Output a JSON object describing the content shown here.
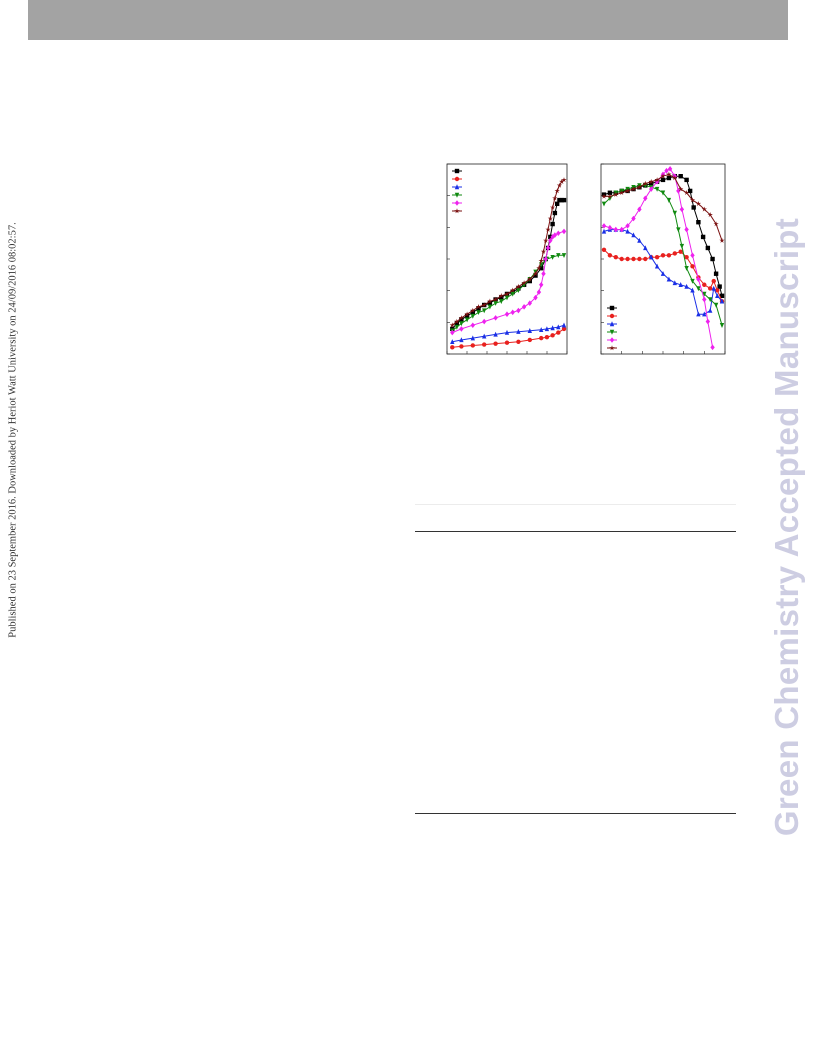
{
  "header": {
    "bar_color": "#a3a3a3"
  },
  "side_note": {
    "text": "Published on 23 September 2016. Downloaded by Heriot Watt University on 24/09/2016 08:02:57."
  },
  "watermark": {
    "text": "Green Chemistry Accepted Manuscript",
    "color": "#cdcde2"
  },
  "chart_data": [
    {
      "type": "line",
      "xlim": [
        0,
        1
      ],
      "ylim": [
        0,
        1
      ],
      "legend": "top-left",
      "series": [
        {
          "color": "#000000",
          "marker": "square",
          "x": [
            0.02,
            0.06,
            0.1,
            0.15,
            0.2,
            0.25,
            0.3,
            0.35,
            0.4,
            0.45,
            0.5,
            0.55,
            0.6,
            0.65,
            0.7,
            0.75,
            0.8,
            0.84,
            0.86,
            0.88,
            0.9,
            0.92,
            0.94,
            0.96,
            0.98,
            1.0
          ],
          "y": [
            0.12,
            0.15,
            0.17,
            0.19,
            0.21,
            0.23,
            0.25,
            0.26,
            0.28,
            0.29,
            0.31,
            0.32,
            0.34,
            0.36,
            0.38,
            0.41,
            0.45,
            0.5,
            0.56,
            0.62,
            0.69,
            0.75,
            0.8,
            0.82,
            0.82,
            0.82
          ]
        },
        {
          "color": "#e8201e",
          "marker": "circle",
          "x": [
            0.02,
            0.1,
            0.2,
            0.3,
            0.4,
            0.5,
            0.6,
            0.7,
            0.8,
            0.85,
            0.9,
            0.95,
            1.0
          ],
          "y": [
            0.02,
            0.025,
            0.03,
            0.035,
            0.04,
            0.045,
            0.05,
            0.06,
            0.07,
            0.075,
            0.085,
            0.1,
            0.12
          ]
        },
        {
          "color": "#1a2fe6",
          "marker": "triangle-up",
          "x": [
            0.02,
            0.1,
            0.2,
            0.3,
            0.4,
            0.5,
            0.6,
            0.7,
            0.8,
            0.85,
            0.9,
            0.95,
            1.0
          ],
          "y": [
            0.05,
            0.06,
            0.07,
            0.08,
            0.09,
            0.1,
            0.105,
            0.11,
            0.115,
            0.12,
            0.125,
            0.13,
            0.14
          ]
        },
        {
          "color": "#108a10",
          "marker": "triangle-down",
          "x": [
            0.02,
            0.06,
            0.1,
            0.15,
            0.2,
            0.25,
            0.3,
            0.35,
            0.4,
            0.45,
            0.5,
            0.55,
            0.6,
            0.65,
            0.7,
            0.75,
            0.8,
            0.85,
            0.9,
            0.95,
            1.0
          ],
          "y": [
            0.11,
            0.13,
            0.15,
            0.17,
            0.19,
            0.21,
            0.22,
            0.24,
            0.26,
            0.27,
            0.29,
            0.31,
            0.33,
            0.36,
            0.39,
            0.43,
            0.47,
            0.5,
            0.51,
            0.52,
            0.52
          ]
        },
        {
          "color": "#ee22ee",
          "marker": "diamond",
          "x": [
            0.02,
            0.1,
            0.2,
            0.3,
            0.4,
            0.5,
            0.55,
            0.6,
            0.65,
            0.7,
            0.75,
            0.78,
            0.8,
            0.82,
            0.84,
            0.86,
            0.88,
            0.9,
            0.92,
            0.95,
            1.0
          ],
          "y": [
            0.1,
            0.12,
            0.14,
            0.16,
            0.18,
            0.2,
            0.21,
            0.22,
            0.24,
            0.26,
            0.29,
            0.32,
            0.36,
            0.42,
            0.5,
            0.56,
            0.6,
            0.62,
            0.63,
            0.64,
            0.65
          ]
        },
        {
          "color": "#7a1010",
          "marker": "star",
          "x": [
            0.02,
            0.06,
            0.1,
            0.15,
            0.2,
            0.25,
            0.3,
            0.35,
            0.4,
            0.45,
            0.5,
            0.55,
            0.6,
            0.65,
            0.7,
            0.75,
            0.78,
            0.8,
            0.82,
            0.84,
            0.86,
            0.88,
            0.9,
            0.92,
            0.94,
            0.96,
            0.98,
            1.0
          ],
          "y": [
            0.14,
            0.16,
            0.18,
            0.2,
            0.22,
            0.24,
            0.25,
            0.27,
            0.28,
            0.3,
            0.31,
            0.33,
            0.35,
            0.37,
            0.39,
            0.42,
            0.45,
            0.49,
            0.54,
            0.6,
            0.66,
            0.72,
            0.78,
            0.83,
            0.87,
            0.9,
            0.92,
            0.93
          ]
        }
      ]
    },
    {
      "type": "line",
      "xlim": [
        0,
        1
      ],
      "ylim": [
        0,
        1
      ],
      "xscale": "log",
      "yscale": "log",
      "legend": "bottom-left",
      "series": [
        {
          "color": "#000000",
          "marker": "square",
          "x": [
            0.0,
            0.05,
            0.1,
            0.15,
            0.2,
            0.25,
            0.3,
            0.35,
            0.4,
            0.45,
            0.5,
            0.55,
            0.6,
            0.65,
            0.7,
            0.73,
            0.76,
            0.8,
            0.84,
            0.88,
            0.92,
            0.95,
            0.98,
            1.0
          ],
          "y": [
            0.85,
            0.86,
            0.86,
            0.87,
            0.87,
            0.88,
            0.89,
            0.9,
            0.91,
            0.92,
            0.93,
            0.94,
            0.95,
            0.95,
            0.93,
            0.87,
            0.78,
            0.7,
            0.62,
            0.56,
            0.5,
            0.42,
            0.35,
            0.3
          ]
        },
        {
          "color": "#e8201e",
          "marker": "circle",
          "x": [
            0.0,
            0.05,
            0.1,
            0.15,
            0.2,
            0.25,
            0.3,
            0.35,
            0.4,
            0.45,
            0.5,
            0.55,
            0.6,
            0.65,
            0.7,
            0.75,
            0.8,
            0.85,
            0.9,
            0.93,
            0.96,
            1.0
          ],
          "y": [
            0.55,
            0.52,
            0.51,
            0.5,
            0.5,
            0.5,
            0.5,
            0.5,
            0.51,
            0.51,
            0.52,
            0.52,
            0.53,
            0.54,
            0.51,
            0.46,
            0.4,
            0.36,
            0.34,
            0.38,
            0.33,
            0.27
          ]
        },
        {
          "color": "#1a2fe6",
          "marker": "triangle-up",
          "x": [
            0.0,
            0.05,
            0.1,
            0.15,
            0.2,
            0.25,
            0.3,
            0.35,
            0.4,
            0.45,
            0.5,
            0.55,
            0.6,
            0.65,
            0.7,
            0.75,
            0.8,
            0.85,
            0.9,
            0.93,
            0.96,
            1.0
          ],
          "y": [
            0.65,
            0.66,
            0.66,
            0.66,
            0.65,
            0.63,
            0.6,
            0.56,
            0.51,
            0.46,
            0.42,
            0.39,
            0.37,
            0.36,
            0.35,
            0.33,
            0.2,
            0.2,
            0.22,
            0.34,
            0.3,
            0.27
          ]
        },
        {
          "color": "#108a10",
          "marker": "triangle-down",
          "x": [
            0.0,
            0.05,
            0.1,
            0.15,
            0.2,
            0.25,
            0.3,
            0.35,
            0.4,
            0.45,
            0.5,
            0.55,
            0.6,
            0.63,
            0.66,
            0.7,
            0.75,
            0.8,
            0.85,
            0.9,
            0.95,
            1.0
          ],
          "y": [
            0.8,
            0.83,
            0.86,
            0.87,
            0.88,
            0.89,
            0.9,
            0.9,
            0.89,
            0.88,
            0.86,
            0.82,
            0.75,
            0.66,
            0.57,
            0.45,
            0.38,
            0.34,
            0.31,
            0.28,
            0.25,
            0.14
          ]
        },
        {
          "color": "#ee22ee",
          "marker": "diamond",
          "x": [
            0.0,
            0.05,
            0.1,
            0.15,
            0.2,
            0.25,
            0.3,
            0.35,
            0.4,
            0.45,
            0.5,
            0.53,
            0.56,
            0.6,
            0.63,
            0.66,
            0.7,
            0.75,
            0.8,
            0.85,
            0.88,
            0.92
          ],
          "y": [
            0.68,
            0.67,
            0.66,
            0.66,
            0.68,
            0.72,
            0.77,
            0.83,
            0.88,
            0.92,
            0.96,
            0.98,
            0.99,
            0.95,
            0.87,
            0.77,
            0.66,
            0.52,
            0.39,
            0.28,
            0.16,
            0.02
          ]
        },
        {
          "color": "#7a1010",
          "marker": "star",
          "x": [
            0.0,
            0.05,
            0.1,
            0.15,
            0.2,
            0.25,
            0.3,
            0.35,
            0.4,
            0.45,
            0.5,
            0.55,
            0.6,
            0.65,
            0.7,
            0.75,
            0.8,
            0.85,
            0.9,
            0.95,
            1.0
          ],
          "y": [
            0.84,
            0.84,
            0.85,
            0.86,
            0.87,
            0.88,
            0.89,
            0.91,
            0.92,
            0.93,
            0.95,
            0.96,
            0.94,
            0.88,
            0.86,
            0.82,
            0.8,
            0.77,
            0.74,
            0.69,
            0.6
          ]
        }
      ]
    }
  ]
}
